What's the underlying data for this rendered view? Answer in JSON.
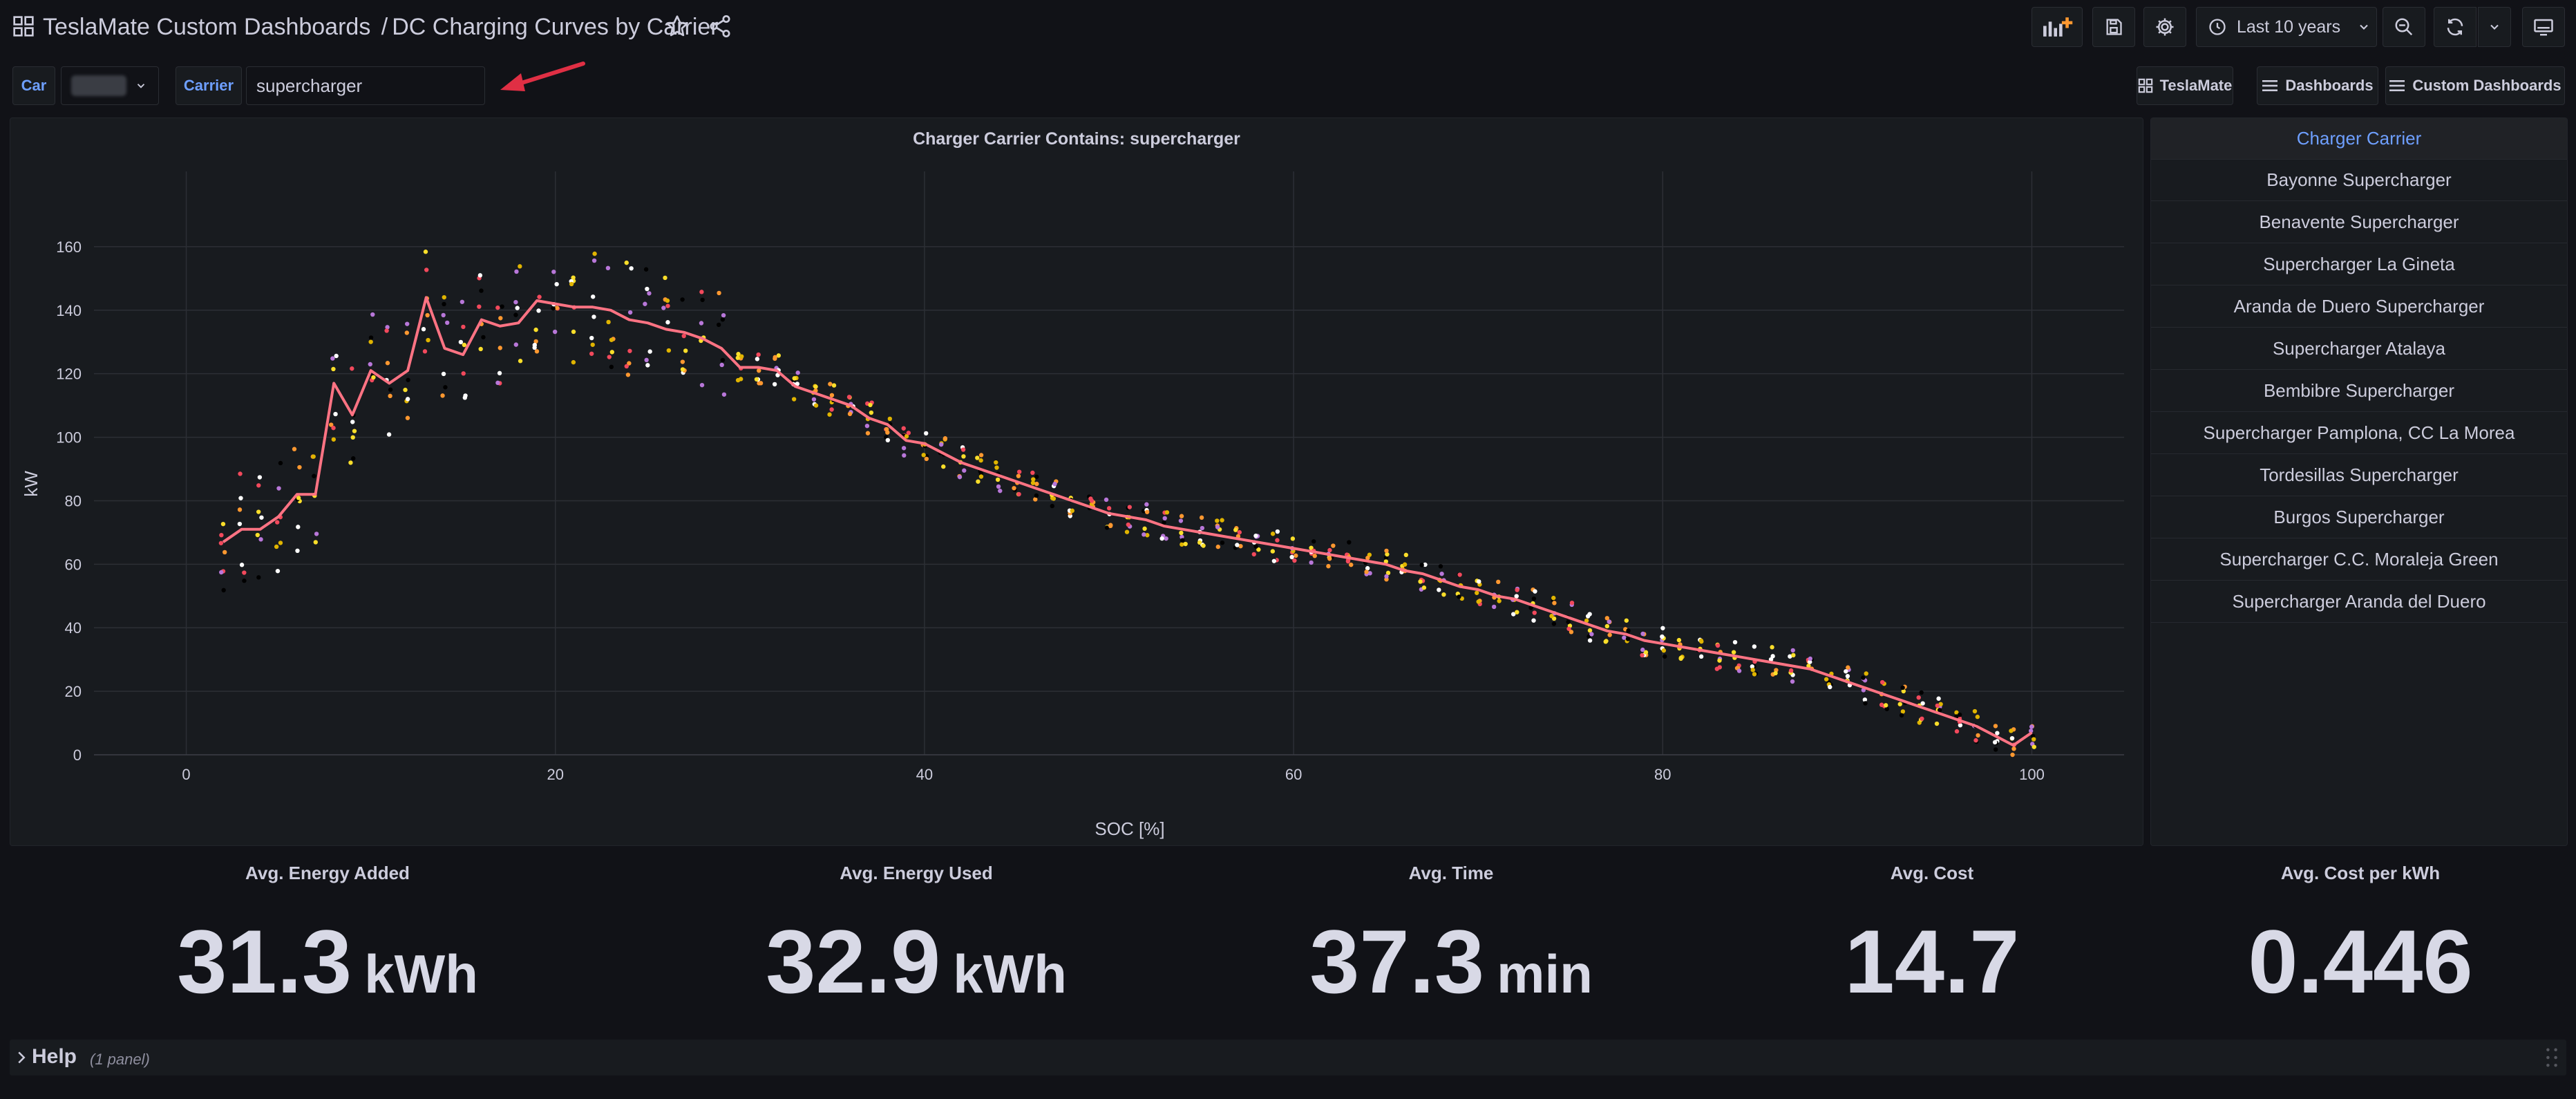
{
  "header": {
    "breadcrumb_root": "TeslaMate Custom Dashboards",
    "breadcrumb_sep": "/",
    "dashboard_title": "DC Charging Curves by Carrier",
    "time_range": "Last 10 years"
  },
  "variables": {
    "car_label": "Car",
    "carrier_label": "Carrier",
    "carrier_value": "supercharger"
  },
  "links": {
    "teslamate": "TeslaMate",
    "dashboards": "Dashboards",
    "custom_dashboards": "Custom Dashboards"
  },
  "chart_panel": {
    "title": "Charger Carrier Contains: supercharger"
  },
  "chart_data": {
    "type": "scatter",
    "title": "Charger Carrier Contains: supercharger",
    "xlabel": "SOC [%]",
    "ylabel": "kW",
    "xlim": [
      -5,
      105
    ],
    "ylim": [
      0,
      175
    ],
    "x_ticks": [
      0,
      20,
      40,
      60,
      80,
      100
    ],
    "y_ticks": [
      0,
      20,
      40,
      60,
      80,
      100,
      120,
      140,
      160
    ],
    "grid": true,
    "legend": "none",
    "avg_series": {
      "color": "#ff7383",
      "x": [
        2,
        3,
        4,
        5,
        6,
        7,
        8,
        9,
        10,
        11,
        12,
        13,
        14,
        15,
        16,
        17,
        18,
        19,
        20,
        21,
        22,
        23,
        24,
        25,
        26,
        27,
        28,
        29,
        30,
        31,
        32,
        33,
        34,
        35,
        36,
        37,
        38,
        39,
        40,
        41,
        42,
        43,
        44,
        45,
        46,
        47,
        48,
        49,
        50,
        51,
        52,
        53,
        54,
        55,
        56,
        57,
        58,
        59,
        60,
        61,
        62,
        63,
        64,
        65,
        66,
        67,
        68,
        69,
        70,
        71,
        72,
        73,
        74,
        75,
        76,
        77,
        78,
        79,
        80,
        81,
        82,
        83,
        84,
        85,
        86,
        87,
        88,
        89,
        90,
        91,
        92,
        93,
        94,
        95,
        96,
        97,
        98,
        99,
        100
      ],
      "y": [
        67,
        71,
        71,
        75,
        82,
        82,
        117,
        107,
        121,
        117,
        121,
        144,
        128,
        126,
        137,
        135,
        136,
        143,
        142,
        141,
        141,
        140,
        137,
        136,
        134,
        133,
        131,
        128,
        122,
        122,
        121,
        116,
        114,
        112,
        110,
        106,
        104,
        99,
        98,
        95,
        92,
        90,
        88,
        86,
        84,
        82,
        80,
        78,
        76,
        75,
        74,
        72,
        71,
        70,
        69,
        68,
        67,
        66,
        65,
        64,
        63,
        62,
        61,
        60,
        58,
        57,
        55,
        53,
        52,
        50,
        49,
        47,
        45,
        43,
        41,
        39,
        38,
        36,
        35,
        34,
        33,
        32,
        31,
        30,
        29,
        28,
        27,
        25,
        23,
        21,
        19,
        17,
        15,
        13,
        11,
        9,
        6,
        3,
        7
      ]
    },
    "scatter_colors": [
      "#fade2a",
      "#ff9830",
      "#ffffff",
      "#f2495c",
      "#b877d9",
      "#e0b400",
      "#000000"
    ]
  },
  "carrier_table": {
    "header": "Charger Carrier",
    "rows": [
      "Bayonne Supercharger",
      "Benavente Supercharger",
      "Supercharger La Gineta",
      "Aranda de Duero Supercharger",
      "Supercharger Atalaya",
      "Bembibre Supercharger",
      "Supercharger Pamplona, CC La Morea",
      "Tordesillas Supercharger",
      "Burgos Supercharger",
      "Supercharger C.C. Moraleja Green",
      "Supercharger Aranda del Duero"
    ]
  },
  "stats": [
    {
      "title": "Avg. Energy Added",
      "value": "31.3",
      "unit": "kWh"
    },
    {
      "title": "Avg. Energy Used",
      "value": "32.9",
      "unit": "kWh"
    },
    {
      "title": "Avg. Time",
      "value": "37.3",
      "unit": "min"
    },
    {
      "title": "Avg. Cost",
      "value": "14.7",
      "unit": ""
    },
    {
      "title": "Avg. Cost per kWh",
      "value": "0.446",
      "unit": ""
    }
  ],
  "help_row": {
    "label": "Help",
    "count": "(1 panel)"
  }
}
